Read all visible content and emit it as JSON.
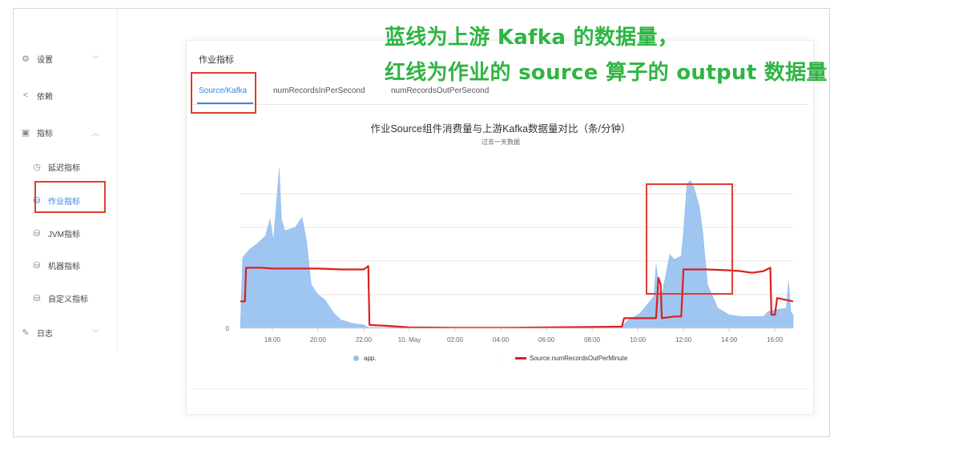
{
  "sidebar": {
    "items": [
      {
        "label": "设置",
        "icon": "gear-icon",
        "glyph": "⚙",
        "chevron": "﹀"
      },
      {
        "label": "依赖",
        "icon": "share-icon",
        "glyph": "<",
        "chevron": ""
      },
      {
        "label": "指标",
        "icon": "image-icon",
        "glyph": "▣",
        "chevron": "︿"
      },
      {
        "label": "延迟指标",
        "icon": "clock-icon",
        "glyph": "◷",
        "chevron": ""
      },
      {
        "label": "作业指标",
        "icon": "database-icon",
        "glyph": "⛁",
        "chevron": ""
      },
      {
        "label": "JVM指标",
        "icon": "database-icon",
        "glyph": "⛁",
        "chevron": ""
      },
      {
        "label": "机器指标",
        "icon": "database-icon",
        "glyph": "⛁",
        "chevron": ""
      },
      {
        "label": "自定义指标",
        "icon": "database-icon",
        "glyph": "⛁",
        "chevron": ""
      },
      {
        "label": "日志",
        "icon": "edit-icon",
        "glyph": "✎",
        "chevron": "﹀"
      }
    ],
    "active_index": 4
  },
  "card": {
    "title": "作业指标",
    "tabs": [
      "Source/Kafka",
      "numRecordsInPerSecond",
      "numRecordsOutPerSecond"
    ],
    "active_tab": 0
  },
  "annotation": {
    "line1": "蓝线为上游 Kafka 的数据量，",
    "line2": "红线为作业的 source 算子的 output 数据量"
  },
  "colors": {
    "accent": "#3a86e8",
    "area": "#94c0ee",
    "red_line": "#dd1f1f",
    "annotation": "#2fb542",
    "highlight_box": "#e03c31"
  },
  "chart_data": {
    "type": "area",
    "title": "作业Source组件消费量与上游Kafka数据量对比（条/分钟）",
    "subtitle": "过去一天数据",
    "x_tick_labels": [
      "18:00",
      "20:00",
      "22:00",
      "10. May",
      "02:00",
      "04:00",
      "06:00",
      "08:00",
      "10:00",
      "12:00",
      "14:00",
      "16:00"
    ],
    "y_tick_labels": [
      "0"
    ],
    "grid": true,
    "legend": [
      "app.",
      "Source.numRecordsOutPerMinute"
    ],
    "legend_position": "bottom",
    "x_range_hours": [
      16.6,
      40.8
    ],
    "y_range_relative": [
      0,
      100
    ],
    "series": [
      {
        "name": "app.",
        "kind": "area",
        "points": [
          [
            16.6,
            0
          ],
          [
            16.7,
            42
          ],
          [
            17.0,
            47
          ],
          [
            17.3,
            50
          ],
          [
            17.7,
            55
          ],
          [
            17.9,
            65
          ],
          [
            18.05,
            52
          ],
          [
            18.3,
            95
          ],
          [
            18.4,
            65
          ],
          [
            18.55,
            58
          ],
          [
            19.0,
            60
          ],
          [
            19.3,
            66
          ],
          [
            19.5,
            52
          ],
          [
            19.7,
            26
          ],
          [
            20.0,
            20
          ],
          [
            20.3,
            17
          ],
          [
            20.7,
            9
          ],
          [
            21.0,
            5
          ],
          [
            21.5,
            3
          ],
          [
            22.0,
            2
          ],
          [
            22.2,
            0.5
          ],
          [
            23.0,
            0.5
          ],
          [
            24.0,
            0.5
          ],
          [
            26.0,
            0.3
          ],
          [
            28.0,
            0.3
          ],
          [
            30.0,
            0.5
          ],
          [
            32.0,
            0.6
          ],
          [
            33.3,
            1
          ],
          [
            33.5,
            4
          ],
          [
            34.1,
            9
          ],
          [
            34.4,
            14
          ],
          [
            34.7,
            19
          ],
          [
            34.8,
            38
          ],
          [
            35.0,
            16
          ],
          [
            35.4,
            44
          ],
          [
            35.6,
            41
          ],
          [
            35.9,
            43
          ],
          [
            36.0,
            57
          ],
          [
            36.15,
            86
          ],
          [
            36.3,
            88
          ],
          [
            36.45,
            84
          ],
          [
            36.7,
            72
          ],
          [
            36.85,
            56
          ],
          [
            37.05,
            26
          ],
          [
            37.5,
            12
          ],
          [
            38.0,
            8
          ],
          [
            38.5,
            7
          ],
          [
            39.0,
            7
          ],
          [
            39.5,
            7
          ],
          [
            39.7,
            10
          ],
          [
            40.0,
            11
          ],
          [
            40.5,
            12
          ],
          [
            40.6,
            28
          ],
          [
            40.7,
            10
          ],
          [
            40.8,
            8
          ]
        ]
      },
      {
        "name": "Source.numRecordsOutPerMinute",
        "kind": "line",
        "points": [
          [
            16.6,
            16
          ],
          [
            16.8,
            16
          ],
          [
            16.85,
            36
          ],
          [
            17.5,
            36
          ],
          [
            18.0,
            35.5
          ],
          [
            19.0,
            35.5
          ],
          [
            20.0,
            35.5
          ],
          [
            21.0,
            35
          ],
          [
            22.0,
            35
          ],
          [
            22.2,
            37
          ],
          [
            22.25,
            2
          ],
          [
            23.0,
            1.5
          ],
          [
            24.0,
            0.5
          ],
          [
            26.0,
            0.3
          ],
          [
            28.0,
            0.3
          ],
          [
            30.0,
            0.5
          ],
          [
            32.0,
            0.8
          ],
          [
            33.3,
            1
          ],
          [
            33.4,
            6
          ],
          [
            34.0,
            6
          ],
          [
            34.8,
            6
          ],
          [
            34.9,
            30
          ],
          [
            35.0,
            26
          ],
          [
            35.05,
            6
          ],
          [
            35.6,
            7
          ],
          [
            35.9,
            7
          ],
          [
            36.0,
            35
          ],
          [
            37.0,
            35
          ],
          [
            38.0,
            34.5
          ],
          [
            38.5,
            34
          ],
          [
            39.0,
            33
          ],
          [
            39.5,
            34
          ],
          [
            39.8,
            36
          ],
          [
            39.85,
            8
          ],
          [
            40.0,
            8
          ],
          [
            40.1,
            18
          ],
          [
            40.8,
            16
          ]
        ]
      }
    ]
  }
}
